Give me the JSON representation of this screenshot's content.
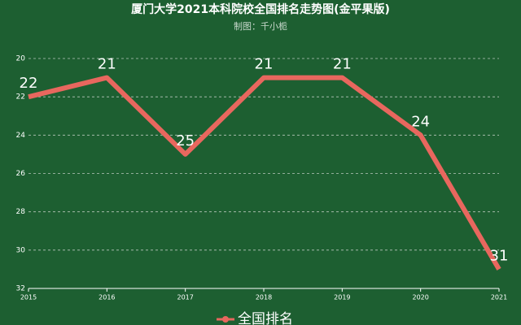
{
  "chart_data": {
    "type": "line",
    "title": "厦门大学2021本科院校全国排名走势图(金平果版)",
    "subtitle": "制图：千小栀",
    "categories": [
      "2015",
      "2016",
      "2017",
      "2018",
      "2019",
      "2020",
      "2021"
    ],
    "series": [
      {
        "name": "全国排名",
        "color": "#e8675e",
        "values": [
          22,
          21,
          25,
          21,
          21,
          24,
          31
        ]
      }
    ],
    "ylim": [
      20,
      32
    ],
    "y_inverted": true,
    "yticks": [
      20,
      22,
      24,
      26,
      28,
      30,
      32
    ],
    "grid": true,
    "background": "#1d5f31",
    "legend": "bottom"
  }
}
